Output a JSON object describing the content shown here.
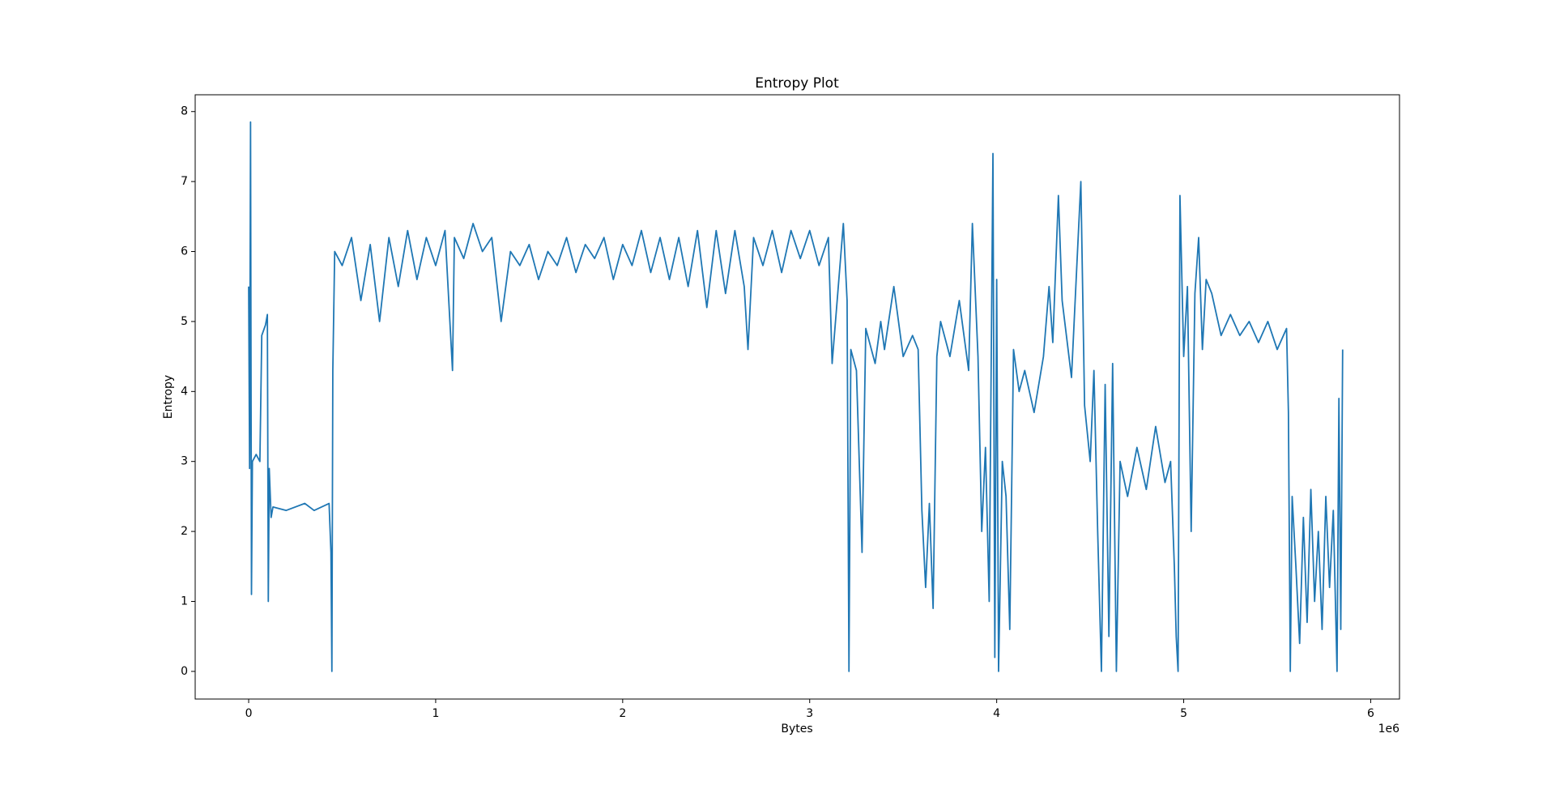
{
  "chart_data": {
    "type": "line",
    "title": "Entropy Plot",
    "x_label": "Bytes",
    "y_label": "Entropy",
    "x_offset_label": "1e6",
    "xlim": [
      -286000,
      6154000
    ],
    "ylim": [
      -0.395,
      8.24
    ],
    "xticks": [
      {
        "value": 0,
        "label": "0"
      },
      {
        "value": 1000000,
        "label": "1"
      },
      {
        "value": 2000000,
        "label": "2"
      },
      {
        "value": 3000000,
        "label": "3"
      },
      {
        "value": 4000000,
        "label": "4"
      },
      {
        "value": 5000000,
        "label": "5"
      },
      {
        "value": 6000000,
        "label": "6"
      }
    ],
    "yticks": [
      0,
      1,
      2,
      3,
      4,
      5,
      6,
      7,
      8
    ],
    "grid": false,
    "series": [
      {
        "name": "Entropy",
        "color": "#1f77b4",
        "x": [
          0,
          5000,
          10000,
          15000,
          20000,
          40000,
          60000,
          70000,
          90000,
          100000,
          105000,
          110000,
          120000,
          130000,
          200000,
          300000,
          350000,
          430000,
          440000,
          445000,
          450000,
          460000,
          500000,
          550000,
          600000,
          650000,
          700000,
          750000,
          800000,
          850000,
          900000,
          950000,
          1000000,
          1050000,
          1090000,
          1100000,
          1150000,
          1200000,
          1250000,
          1300000,
          1350000,
          1400000,
          1450000,
          1500000,
          1550000,
          1600000,
          1650000,
          1700000,
          1750000,
          1800000,
          1850000,
          1900000,
          1950000,
          2000000,
          2050000,
          2100000,
          2150000,
          2200000,
          2250000,
          2300000,
          2350000,
          2400000,
          2450000,
          2500000,
          2550000,
          2600000,
          2650000,
          2670000,
          2700000,
          2750000,
          2800000,
          2850000,
          2900000,
          2950000,
          3000000,
          3050000,
          3100000,
          3120000,
          3150000,
          3180000,
          3200000,
          3210000,
          3220000,
          3250000,
          3280000,
          3300000,
          3350000,
          3380000,
          3400000,
          3450000,
          3500000,
          3550000,
          3580000,
          3600000,
          3620000,
          3640000,
          3660000,
          3680000,
          3700000,
          3750000,
          3800000,
          3850000,
          3870000,
          3900000,
          3920000,
          3940000,
          3960000,
          3980000,
          3990000,
          4000000,
          4010000,
          4030000,
          4050000,
          4070000,
          4090000,
          4120000,
          4150000,
          4200000,
          4250000,
          4280000,
          4300000,
          4330000,
          4350000,
          4400000,
          4450000,
          4470000,
          4500000,
          4520000,
          4540000,
          4560000,
          4580000,
          4600000,
          4620000,
          4640000,
          4660000,
          4700000,
          4750000,
          4800000,
          4850000,
          4900000,
          4930000,
          4950000,
          4960000,
          4970000,
          4980000,
          5000000,
          5020000,
          5040000,
          5060000,
          5080000,
          5100000,
          5120000,
          5150000,
          5200000,
          5250000,
          5300000,
          5350000,
          5400000,
          5450000,
          5500000,
          5550000,
          5560000,
          5570000,
          5580000,
          5600000,
          5620000,
          5640000,
          5660000,
          5680000,
          5700000,
          5720000,
          5740000,
          5760000,
          5780000,
          5800000,
          5820000,
          5830000,
          5840000,
          5850000
        ],
        "values": [
          5.5,
          2.9,
          7.85,
          1.1,
          3.0,
          3.1,
          3.0,
          4.8,
          4.95,
          5.1,
          1.0,
          2.9,
          2.2,
          2.35,
          2.3,
          2.4,
          2.3,
          2.4,
          1.7,
          0,
          4.3,
          6.0,
          5.8,
          6.2,
          5.3,
          6.1,
          5.0,
          6.2,
          5.5,
          6.3,
          5.6,
          6.2,
          5.8,
          6.3,
          4.3,
          6.2,
          5.9,
          6.4,
          6.0,
          6.2,
          5.0,
          6.0,
          5.8,
          6.1,
          5.6,
          6.0,
          5.8,
          6.2,
          5.7,
          6.1,
          5.9,
          6.2,
          5.6,
          6.1,
          5.8,
          6.3,
          5.7,
          6.2,
          5.6,
          6.2,
          5.5,
          6.3,
          5.2,
          6.3,
          5.4,
          6.3,
          5.5,
          4.6,
          6.2,
          5.8,
          6.3,
          5.7,
          6.3,
          5.9,
          6.3,
          5.8,
          6.2,
          4.4,
          5.4,
          6.4,
          5.3,
          0,
          4.6,
          4.3,
          1.7,
          4.9,
          4.4,
          5.0,
          4.6,
          5.5,
          4.5,
          4.8,
          4.6,
          2.3,
          1.2,
          2.4,
          0.9,
          4.5,
          5.0,
          4.5,
          5.3,
          4.3,
          6.4,
          4.5,
          2.0,
          3.2,
          1.0,
          7.4,
          0.2,
          5.6,
          0,
          3.0,
          2.5,
          0.6,
          4.6,
          4.0,
          4.3,
          3.7,
          4.5,
          5.5,
          4.7,
          6.8,
          5.3,
          4.2,
          7.0,
          3.8,
          3.0,
          4.3,
          2.0,
          0,
          4.1,
          0.5,
          4.4,
          0,
          3.0,
          2.5,
          3.2,
          2.6,
          3.5,
          2.7,
          3.0,
          1.5,
          0.5,
          0,
          6.8,
          4.5,
          5.5,
          2.0,
          5.4,
          6.2,
          4.6,
          5.6,
          5.4,
          4.8,
          5.1,
          4.8,
          5.0,
          4.7,
          5.0,
          4.6,
          4.9,
          3.7,
          0,
          2.5,
          1.5,
          0.4,
          2.2,
          0.7,
          2.6,
          1.0,
          2.0,
          0.6,
          2.5,
          1.2,
          2.3,
          0,
          3.9,
          0.6,
          4.6
        ]
      }
    ]
  }
}
